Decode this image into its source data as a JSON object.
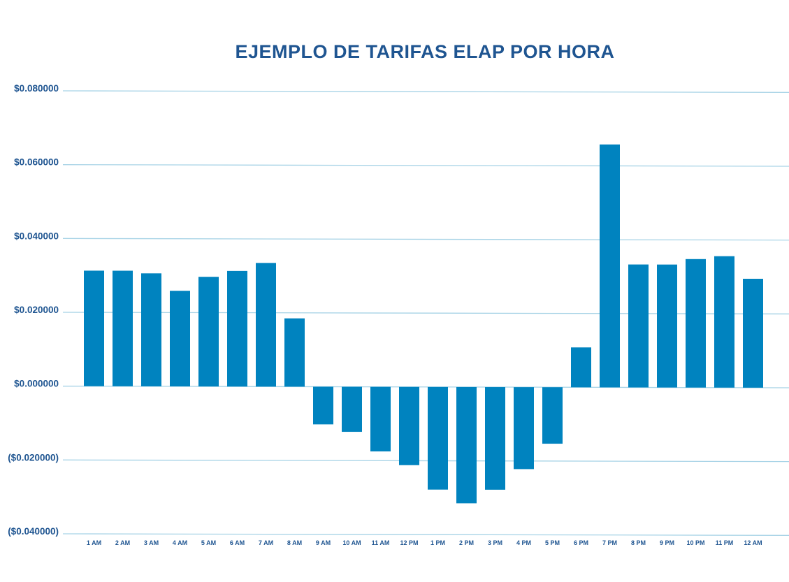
{
  "colors": {
    "bar": "#0083bf",
    "grid": "#a7d3e6",
    "title": "#1f5591",
    "tick_text": "#1f5591",
    "background": "#ffffff"
  },
  "chart_data": {
    "type": "bar",
    "title": "EJEMPLO DE TARIFAS ELAP POR HORA",
    "xlabel": "",
    "ylabel": "",
    "ylim": [
      -0.04,
      0.08
    ],
    "grid": true,
    "legend": "none",
    "y_ticks": [
      {
        "value": 0.08,
        "label": "$0.080000"
      },
      {
        "value": 0.06,
        "label": "$0.060000"
      },
      {
        "value": 0.04,
        "label": "$0.040000"
      },
      {
        "value": 0.02,
        "label": "$0.020000"
      },
      {
        "value": 0.0,
        "label": "$0.000000"
      },
      {
        "value": -0.02,
        "label": "($0.020000)"
      },
      {
        "value": -0.04,
        "label": "($0.040000)"
      }
    ],
    "categories": [
      "1 AM",
      "2 AM",
      "3 AM",
      "4 AM",
      "5 AM",
      "6 AM",
      "7 AM",
      "8 AM",
      "9 AM",
      "10 AM",
      "11 AM",
      "12 PM",
      "1 PM",
      "2 PM",
      "3 PM",
      "4 PM",
      "5 PM",
      "6 PM",
      "7 PM",
      "8 PM",
      "9 PM",
      "10 PM",
      "11 PM",
      "12 AM"
    ],
    "values": [
      0.0313,
      0.0313,
      0.0306,
      0.0259,
      0.0297,
      0.0313,
      0.0335,
      0.0185,
      -0.0102,
      -0.0122,
      -0.0175,
      -0.0212,
      -0.0278,
      -0.0315,
      -0.0278,
      -0.0222,
      -0.0153,
      0.0108,
      0.0658,
      0.0333,
      0.0333,
      0.0348,
      0.0356,
      0.0295
    ]
  }
}
